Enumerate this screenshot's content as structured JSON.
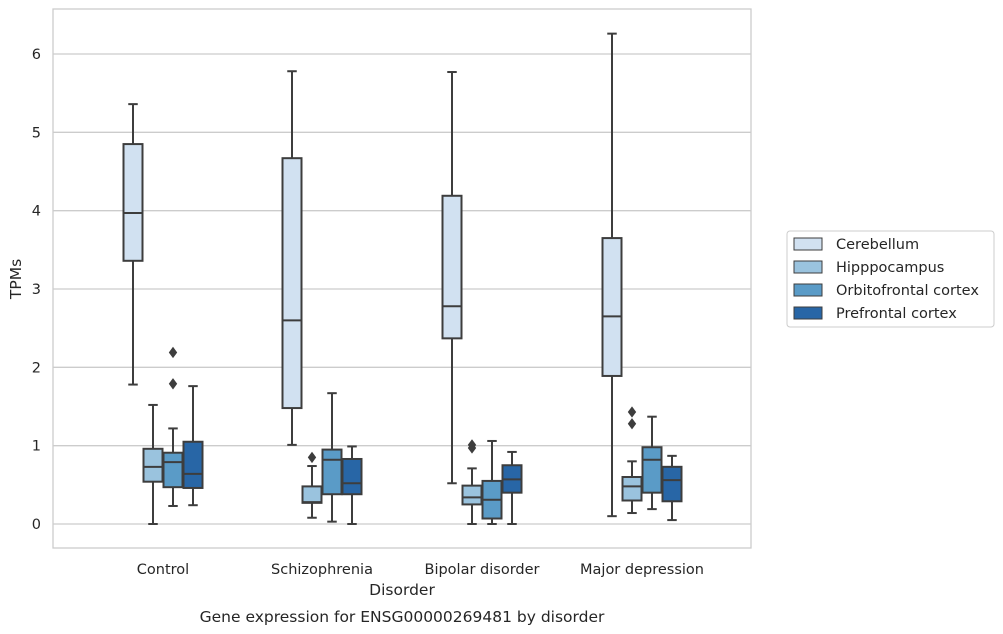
{
  "chart_data": {
    "type": "box",
    "title": "",
    "caption": "Gene expression for ENSG00000269481 by disorder",
    "xlabel": "Disorder",
    "ylabel": "TPMs",
    "ylim": [
      -0.3,
      6.6
    ],
    "yticks": [
      "0",
      "1",
      "2",
      "3",
      "4",
      "5",
      "6"
    ],
    "grid": "horizontal",
    "legend_position": "right",
    "categories": [
      "Control",
      "Schizophrenia",
      "Bipolar disorder",
      "Major depression"
    ],
    "series": [
      {
        "name": "Cerebellum",
        "color": "#d1e1f1",
        "boxes": [
          {
            "whislo": 1.78,
            "q1": 3.36,
            "med": 3.97,
            "q3": 4.85,
            "whishi": 5.36,
            "fliers": []
          },
          {
            "whislo": 1.01,
            "q1": 1.48,
            "med": 2.6,
            "q3": 4.67,
            "whishi": 5.78,
            "fliers": []
          },
          {
            "whislo": 0.52,
            "q1": 2.37,
            "med": 2.78,
            "q3": 4.19,
            "whishi": 5.77,
            "fliers": []
          },
          {
            "whislo": 0.1,
            "q1": 1.89,
            "med": 2.65,
            "q3": 3.65,
            "whishi": 6.26,
            "fliers": []
          }
        ]
      },
      {
        "name": "Hipppocampus",
        "color": "#9ac3de",
        "boxes": [
          {
            "whislo": 0.0,
            "q1": 0.54,
            "med": 0.73,
            "q3": 0.96,
            "whishi": 1.52,
            "fliers": []
          },
          {
            "whislo": 0.08,
            "q1": 0.27,
            "med": 0.28,
            "q3": 0.48,
            "whishi": 0.74,
            "fliers": [
              0.85
            ]
          },
          {
            "whislo": 0.0,
            "q1": 0.25,
            "med": 0.34,
            "q3": 0.49,
            "whishi": 0.71,
            "fliers": [
              0.97,
              1.01
            ]
          },
          {
            "whislo": 0.14,
            "q1": 0.3,
            "med": 0.48,
            "q3": 0.6,
            "whishi": 0.8,
            "fliers": [
              1.28,
              1.43
            ]
          }
        ]
      },
      {
        "name": "Orbitofrontal cortex",
        "color": "#5a9bc7",
        "boxes": [
          {
            "whislo": 0.23,
            "q1": 0.47,
            "med": 0.79,
            "q3": 0.91,
            "whishi": 1.22,
            "fliers": [
              1.79,
              2.19
            ]
          },
          {
            "whislo": 0.03,
            "q1": 0.38,
            "med": 0.82,
            "q3": 0.95,
            "whishi": 1.67,
            "fliers": []
          },
          {
            "whislo": 0.0,
            "q1": 0.07,
            "med": 0.31,
            "q3": 0.55,
            "whishi": 1.06,
            "fliers": []
          },
          {
            "whislo": 0.19,
            "q1": 0.4,
            "med": 0.82,
            "q3": 0.98,
            "whishi": 1.37,
            "fliers": []
          }
        ]
      },
      {
        "name": "Prefrontal cortex",
        "color": "#2866a6",
        "boxes": [
          {
            "whislo": 0.24,
            "q1": 0.46,
            "med": 0.64,
            "q3": 1.05,
            "whishi": 1.76,
            "fliers": []
          },
          {
            "whislo": 0.0,
            "q1": 0.38,
            "med": 0.52,
            "q3": 0.83,
            "whishi": 0.99,
            "fliers": []
          },
          {
            "whislo": 0.0,
            "q1": 0.4,
            "med": 0.57,
            "q3": 0.75,
            "whishi": 0.92,
            "fliers": []
          },
          {
            "whislo": 0.05,
            "q1": 0.29,
            "med": 0.56,
            "q3": 0.73,
            "whishi": 0.87,
            "fliers": []
          }
        ]
      }
    ]
  }
}
